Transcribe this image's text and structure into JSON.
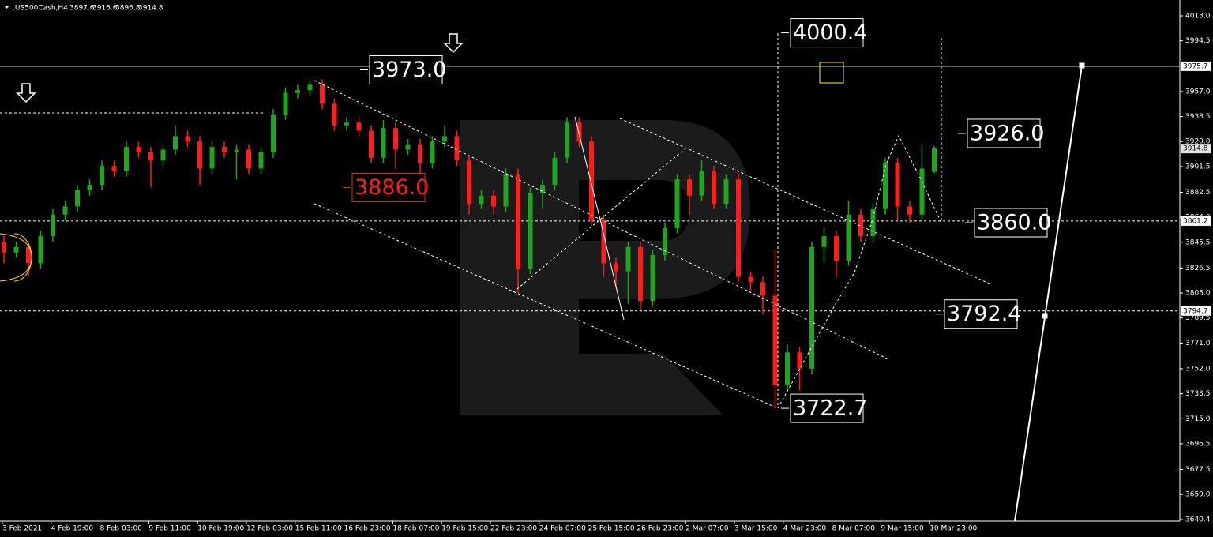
{
  "chart_data": {
    "type": "candlestick",
    "symbol": ".US500Cash,H4",
    "up_color": "#1fa51f",
    "down_color": "#ff1c1c",
    "series": {
      "open": [
        3846,
        3838,
        3842,
        3830,
        3850,
        3866,
        3872,
        3884,
        3888,
        3902,
        3898,
        3916,
        3912,
        3906,
        3914,
        3924,
        3920,
        3900,
        3916,
        3912,
        3914,
        3900,
        3912,
        3940,
        3956,
        3958,
        3962,
        3948,
        3932,
        3934,
        3928,
        3908,
        3930,
        3914,
        3918,
        3904,
        3920,
        3924,
        3906,
        3874,
        3880,
        3872,
        3896,
        3826,
        3882,
        3888,
        3908,
        3934,
        3920,
        3862,
        3830,
        3824,
        3842,
        3802,
        3836,
        3856,
        3892,
        3880,
        3898,
        3874,
        3892,
        3820,
        3816,
        3806,
        3740,
        3764,
        3752,
        3842,
        3850,
        3832,
        3866,
        3850,
        3870,
        3904,
        3872,
        3866,
        3897.6
      ],
      "high": [
        3850,
        3846,
        3846,
        3854,
        3870,
        3876,
        3888,
        3892,
        3906,
        3906,
        3920,
        3920,
        3916,
        3918,
        3932,
        3928,
        3924,
        3920,
        3920,
        3918,
        3918,
        3916,
        3944,
        3960,
        3962,
        3966,
        3966,
        3952,
        3938,
        3938,
        3932,
        3936,
        3934,
        3922,
        3922,
        3924,
        3932,
        3928,
        3910,
        3884,
        3884,
        3900,
        3900,
        3886,
        3892,
        3912,
        3938,
        3938,
        3924,
        3866,
        3834,
        3846,
        3846,
        3840,
        3860,
        3896,
        3896,
        3906,
        3902,
        3896,
        3896,
        3824,
        3820,
        3840,
        3770,
        3768,
        3846,
        3856,
        3854,
        3876,
        3870,
        3874,
        3908,
        3908,
        3876,
        3918,
        3916.6
      ],
      "low": [
        3830,
        3834,
        3820,
        3826,
        3846,
        3862,
        3868,
        3880,
        3884,
        3894,
        3894,
        3908,
        3886,
        3902,
        3910,
        3916,
        3888,
        3896,
        3908,
        3892,
        3896,
        3896,
        3908,
        3936,
        3952,
        3954,
        3944,
        3928,
        3928,
        3924,
        3904,
        3904,
        3900,
        3910,
        3896,
        3900,
        3916,
        3902,
        3866,
        3870,
        3866,
        3868,
        3808,
        3822,
        3870,
        3884,
        3904,
        3916,
        3858,
        3820,
        3812,
        3800,
        3796,
        3798,
        3832,
        3852,
        3866,
        3876,
        3870,
        3870,
        3816,
        3810,
        3792,
        3722.7,
        3736,
        3736,
        3748,
        3830,
        3820,
        3828,
        3846,
        3846,
        3866,
        3862,
        3860,
        3862,
        3896.8
      ],
      "close": [
        3838,
        3842,
        3830,
        3850,
        3866,
        3872,
        3884,
        3888,
        3902,
        3898,
        3916,
        3912,
        3906,
        3914,
        3924,
        3920,
        3900,
        3916,
        3912,
        3914,
        3900,
        3912,
        3940,
        3956,
        3958,
        3962,
        3948,
        3932,
        3934,
        3928,
        3908,
        3930,
        3914,
        3918,
        3904,
        3920,
        3924,
        3906,
        3874,
        3880,
        3872,
        3896,
        3826,
        3882,
        3888,
        3908,
        3934,
        3920,
        3862,
        3830,
        3824,
        3842,
        3802,
        3836,
        3856,
        3892,
        3880,
        3898,
        3874,
        3892,
        3820,
        3816,
        3806,
        3740,
        3764,
        3752,
        3842,
        3850,
        3832,
        3866,
        3850,
        3870,
        3904,
        3872,
        3866,
        3900,
        3914.8
      ]
    },
    "ylim": [
      3640.4,
      4013.0
    ],
    "yticks": [
      {
        "value": 4013.0,
        "label": "4013.0"
      },
      {
        "value": 3994.5,
        "label": "3994.5"
      },
      {
        "value": 3976.0,
        "label": "3976.0"
      },
      {
        "value": 3957.0,
        "label": "3957.0"
      },
      {
        "value": 3938.5,
        "label": "3938.5"
      },
      {
        "value": 3920.0,
        "label": "3920.0"
      },
      {
        "value": 3901.5,
        "label": "3901.5"
      },
      {
        "value": 3882.5,
        "label": "3882.5"
      },
      {
        "value": 3864.0,
        "label": "3864.0"
      },
      {
        "value": 3845.5,
        "label": "3845.5"
      },
      {
        "value": 3826.5,
        "label": "3826.5"
      },
      {
        "value": 3808.0,
        "label": "3808.0"
      },
      {
        "value": 3789.5,
        "label": "3789.5"
      },
      {
        "value": 3771.0,
        "label": "3771.0"
      },
      {
        "value": 3752.0,
        "label": "3752.0"
      },
      {
        "value": 3733.5,
        "label": "3733.5"
      },
      {
        "value": 3715.0,
        "label": "3715.0"
      },
      {
        "value": 3696.5,
        "label": "3696.5"
      },
      {
        "value": 3677.5,
        "label": "3677.5"
      },
      {
        "value": 3659.0,
        "label": "3659.0"
      },
      {
        "value": 3640.4,
        "label": "3640.4"
      }
    ],
    "x_labels": [
      "3 Feb 2021",
      "4 Feb 19:00",
      "8 Feb 03:00",
      "9 Feb 11:00",
      "10 Feb 19:00",
      "12 Feb 03:00",
      "15 Feb 11:00",
      "16 Feb 23:00",
      "18 Feb 07:00",
      "19 Feb 15:00",
      "22 Feb 23:00",
      "24 Feb 07:00",
      "25 Feb 15:00",
      "26 Feb 23:00",
      "2 Mar 07:00",
      "3 Mar 15:00",
      "4 Mar 23:00",
      "8 Mar 07:00",
      "9 Mar 15:00",
      "10 Mar 23:00"
    ],
    "price_lines": [
      {
        "value": 3975.7,
        "style": "solid"
      },
      {
        "value": 3861.2,
        "style": "dotted"
      },
      {
        "value": 3794.7,
        "style": "dotted"
      }
    ],
    "annotations": [
      {
        "value": 4000.4,
        "label": "4000.4",
        "color": "#ffffff"
      },
      {
        "value": 3973.0,
        "label": "3973.0",
        "color": "#ffffff"
      },
      {
        "value": 3886.0,
        "label": "3886.0",
        "color": "#ff1c1c"
      },
      {
        "value": 3926.0,
        "label": "3926.0",
        "color": "#ffffff"
      },
      {
        "value": 3860.0,
        "label": "3860.0",
        "color": "#ffffff"
      },
      {
        "value": 3792.4,
        "label": "3792.4",
        "color": "#ffffff"
      },
      {
        "value": 3722.7,
        "label": "3722.7",
        "color": "#ffffff"
      }
    ]
  }
}
